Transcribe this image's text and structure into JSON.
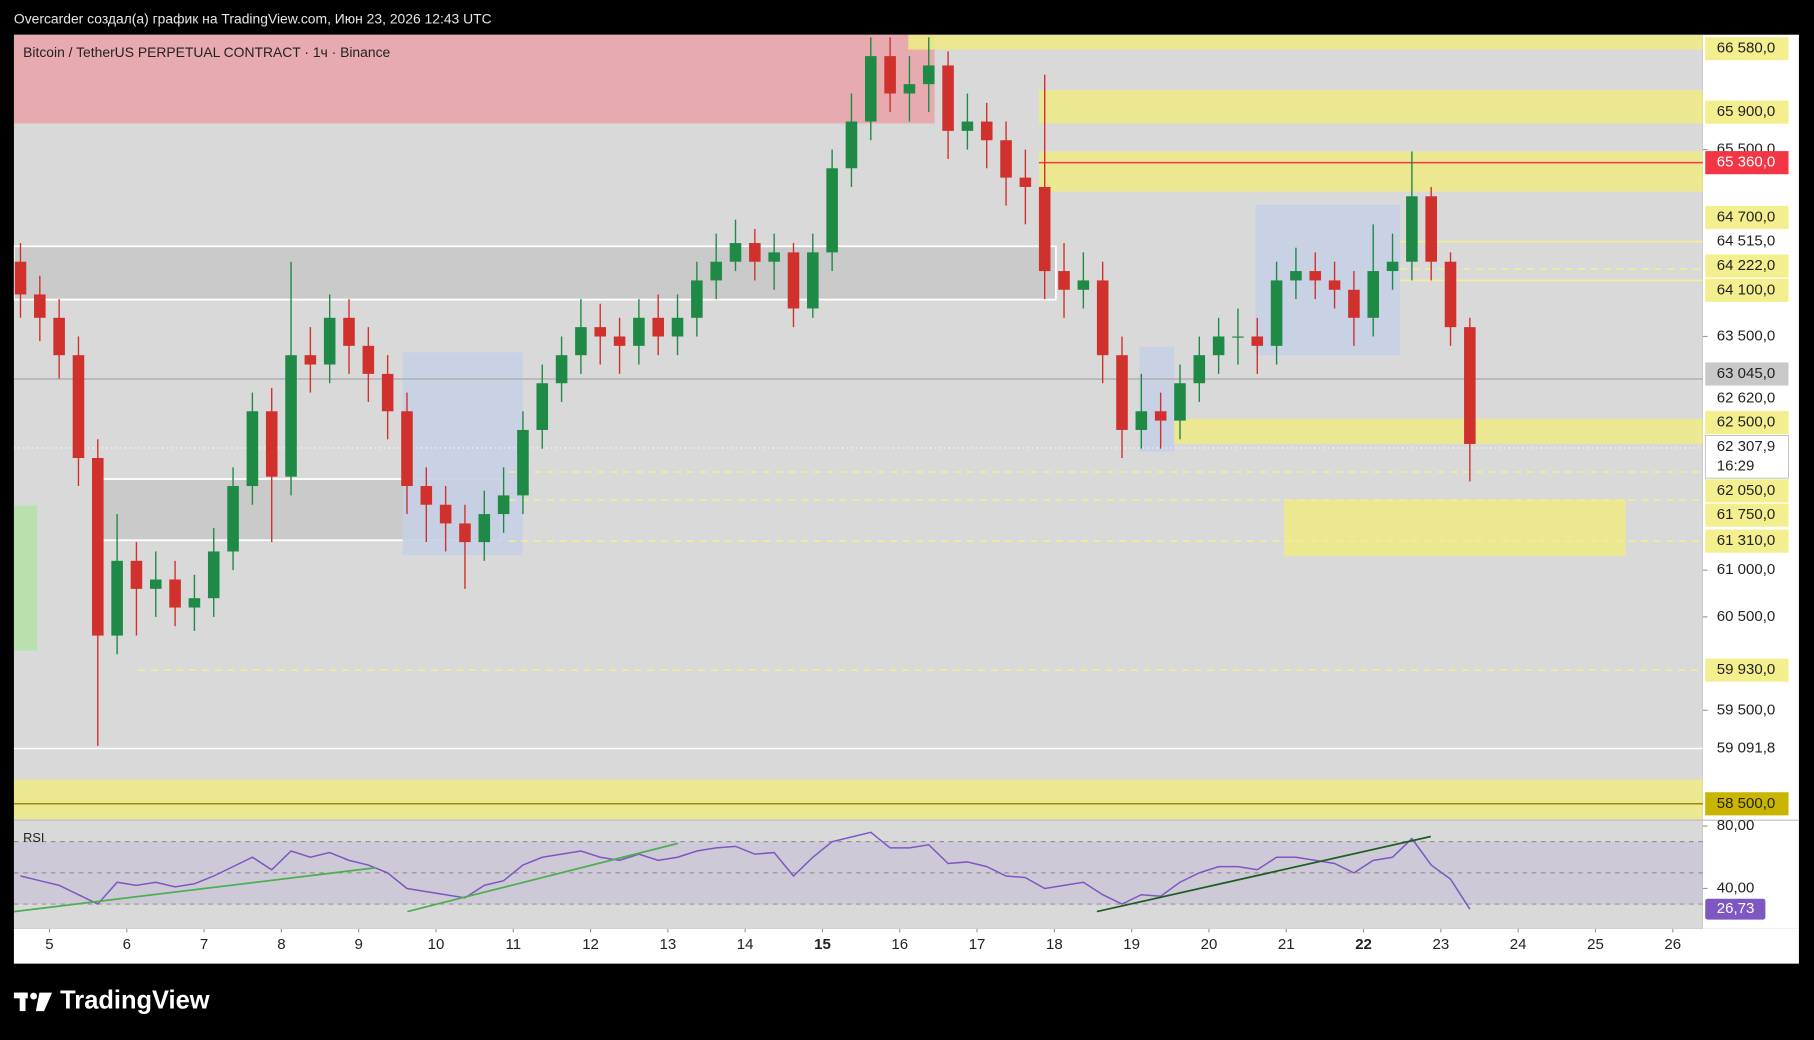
{
  "header": "Overcarder создал(а) график на TradingView.com, Июн 23, 2026 12:43 UTC",
  "footer": {
    "logo": "TradingView"
  },
  "chart_data": {
    "type": "candlestick",
    "title": "Bitcoin / TetherUS PERPETUAL CONTRACT · 1ч · Binance",
    "x": [
      4.625,
      4.875,
      5.125,
      5.375,
      5.625,
      5.875,
      6.125,
      6.375,
      6.625,
      6.875,
      7.125,
      7.375,
      7.625,
      7.875,
      8.125,
      8.375,
      8.625,
      8.875,
      9.125,
      9.375,
      9.625,
      9.875,
      10.125,
      10.375,
      10.625,
      10.875,
      11.125,
      11.375,
      11.625,
      11.875,
      12.125,
      12.375,
      12.625,
      12.875,
      13.125,
      13.375,
      13.625,
      13.875,
      14.125,
      14.375,
      14.625,
      14.875,
      15.125,
      15.375,
      15.625,
      15.875,
      16.125,
      16.375,
      16.625,
      16.875,
      17.125,
      17.375,
      17.625,
      17.875,
      18.125,
      18.375,
      18.625,
      18.875,
      19.125,
      19.375,
      19.625,
      19.875,
      20.125,
      20.375,
      20.625,
      20.875,
      21.125,
      21.375,
      21.625,
      21.875,
      22.125,
      22.375,
      22.625,
      22.875,
      23.125,
      23.375
    ],
    "open": [
      64300,
      63950,
      63700,
      63300,
      62200,
      60300,
      61100,
      60800,
      60900,
      60600,
      60700,
      61200,
      61900,
      62700,
      62000,
      63300,
      63200,
      63700,
      63400,
      63100,
      62700,
      61900,
      61700,
      61500,
      61300,
      61600,
      61800,
      62500,
      63000,
      63300,
      63600,
      63500,
      63400,
      63700,
      63500,
      63700,
      64100,
      64300,
      64500,
      64300,
      64400,
      63800,
      64400,
      65300,
      65800,
      66500,
      66100,
      66200,
      66400,
      65700,
      65800,
      65600,
      65200,
      65100,
      64200,
      64000,
      64100,
      63300,
      62500,
      62700,
      62600,
      63000,
      63300,
      63500,
      63500,
      63400,
      64100,
      64200,
      64100,
      64000,
      63700,
      64200,
      64300,
      65000,
      64300,
      63600
    ],
    "high": [
      64500,
      64150,
      63900,
      63500,
      62400,
      61600,
      61300,
      61200,
      61100,
      60950,
      61450,
      62100,
      62900,
      62950,
      64300,
      63600,
      63950,
      63900,
      63600,
      63300,
      62900,
      62100,
      61900,
      61700,
      61850,
      62100,
      62700,
      63200,
      63500,
      63900,
      63850,
      63700,
      63900,
      63950,
      63950,
      64300,
      64600,
      64750,
      64650,
      64600,
      64500,
      64600,
      65500,
      66100,
      66700,
      66700,
      66500,
      66700,
      66550,
      66100,
      66000,
      65800,
      65500,
      66300,
      64500,
      64400,
      64300,
      63500,
      63100,
      62900,
      63200,
      63500,
      63700,
      63800,
      63700,
      64300,
      64450,
      64400,
      64300,
      64200,
      64700,
      64600,
      65480,
      65100,
      64400,
      63700
    ],
    "low": [
      63700,
      63450,
      63050,
      61900,
      59120,
      60100,
      60300,
      60500,
      60400,
      60350,
      60500,
      61000,
      61700,
      61300,
      61800,
      62900,
      63000,
      63100,
      62800,
      62400,
      61600,
      61300,
      61200,
      60800,
      61100,
      61400,
      61600,
      62300,
      62800,
      63100,
      63200,
      63100,
      63200,
      63300,
      63300,
      63500,
      63900,
      64200,
      64100,
      64000,
      63600,
      63700,
      64200,
      65100,
      65600,
      65900,
      65800,
      65900,
      65400,
      65500,
      65300,
      64900,
      64700,
      63900,
      63700,
      63800,
      63000,
      62200,
      62300,
      62300,
      62400,
      62800,
      63100,
      63200,
      63100,
      63200,
      63900,
      63900,
      63800,
      63400,
      63500,
      64000,
      64100,
      64100,
      63400,
      61950
    ],
    "close": [
      63950,
      63700,
      63300,
      62200,
      60300,
      61100,
      60800,
      60900,
      60600,
      60700,
      61200,
      61900,
      62700,
      62000,
      63300,
      63200,
      63700,
      63400,
      63100,
      62700,
      61900,
      61700,
      61500,
      61300,
      61600,
      61800,
      62500,
      63000,
      63300,
      63600,
      63500,
      63400,
      63700,
      63500,
      63700,
      64100,
      64300,
      64500,
      64300,
      64400,
      63800,
      64400,
      65300,
      65800,
      66500,
      66100,
      66200,
      66400,
      65700,
      65800,
      65600,
      65200,
      65100,
      64200,
      64000,
      64100,
      63300,
      62500,
      62700,
      62600,
      63000,
      63300,
      63500,
      63500,
      63400,
      64100,
      64200,
      64100,
      64000,
      63700,
      64200,
      64300,
      65000,
      64300,
      63600,
      62350
    ],
    "up_color": "#1e8a46",
    "down_color": "#d0312d",
    "xlim": [
      4.54,
      26.39
    ],
    "xticks": [
      5,
      6,
      7,
      8,
      9,
      10,
      11,
      12,
      13,
      14,
      15,
      16,
      17,
      18,
      19,
      20,
      21,
      22,
      23,
      24,
      25,
      26
    ],
    "bold_xticks": [
      15,
      22
    ],
    "ylim": [
      58337,
      66729
    ],
    "yticks": [
      {
        "value": 65500,
        "label": "65 500,0"
      },
      {
        "value": 63500,
        "label": "63 500,0"
      },
      {
        "value": 61000,
        "label": "61 000,0"
      },
      {
        "value": 60500,
        "label": "60 500,0"
      },
      {
        "value": 59500,
        "label": "59 500,0"
      }
    ],
    "current_price": {
      "value": 62307.9,
      "label": "62 307,9",
      "countdown": "16:29"
    },
    "levels": [
      {
        "value": 66580,
        "label": "66 580,0",
        "bg": "#f3ef8f",
        "fg": "#222"
      },
      {
        "value": 65900,
        "label": "65 900,0",
        "bg": "#f3ef8f",
        "fg": "#222"
      },
      {
        "value": 65360,
        "label": "65 360,0",
        "bg": "#f23645",
        "fg": "#ffffff",
        "line": "solid",
        "line_color": "#f23645",
        "from": 17.8
      },
      {
        "value": 64700,
        "label": "64 700,0",
        "bg": "#f3ef8f",
        "fg": "#222"
      },
      {
        "value": 64515,
        "label": "64 515,0",
        "bg": "#ffffff",
        "fg": "#222",
        "line": "solid",
        "line_color": "#f3ef8f",
        "from": 22.47
      },
      {
        "value": 64222,
        "label": "64 222,0",
        "bg": "#f3ef8f",
        "fg": "#222",
        "line": "dashed",
        "line_color": "#f3ef8f",
        "from": 22.47
      },
      {
        "value": 64100,
        "label": "64 100,0",
        "bg": "#f3ef8f",
        "fg": "#222",
        "line": "solid",
        "line_color": "#f3ef8f",
        "from": 22.47
      },
      {
        "value": 63045,
        "label": "63 045,0",
        "bg": "#c8c8c8",
        "fg": "#222",
        "line": "solid",
        "line_color": "#b0b0b0",
        "from": 4.54
      },
      {
        "value": 62620,
        "label": "62 620,0",
        "bg": "#ffffff",
        "fg": "#222"
      },
      {
        "value": 62500,
        "label": "62 500,0",
        "bg": "#f3ef8f",
        "fg": "#222"
      },
      {
        "value": 62050,
        "label": "62 050,0",
        "bg": "#f3ef8f",
        "fg": "#222",
        "line": "dashed",
        "line_color": "#f3ef8f",
        "from": 10.94
      },
      {
        "value": 61750,
        "label": "61 750,0",
        "bg": "#f3ef8f",
        "fg": "#222",
        "line": "dashed",
        "line_color": "#f3ef8f",
        "from": 10.94
      },
      {
        "value": 61310,
        "label": "61 310,0",
        "bg": "#f3ef8f",
        "fg": "#222",
        "line": "dashed",
        "line_color": "#f3ef8f",
        "from": 10.94
      },
      {
        "value": 59930,
        "label": "59 930,0",
        "bg": "#f3ef8f",
        "fg": "#222",
        "line": "dashed",
        "line_color": "#f3ef8f",
        "from": 6.15
      },
      {
        "value": 59091.8,
        "label": "59 091,8",
        "bg": "#ffffff",
        "fg": "#222",
        "line": "solid",
        "line_color": "#ffffff",
        "from": 4.54
      },
      {
        "value": 58500,
        "label": "58 500,0",
        "bg": "#c9b400",
        "fg": "#222",
        "line": "solid",
        "line_color": "#9c8c00",
        "from": 4.54
      }
    ],
    "zones": [
      {
        "x": [
          4.54,
          16.45
        ],
        "y": [
          66729,
          65780
        ],
        "color": "#e8a4a8"
      },
      {
        "x": [
          16.11,
          26.39
        ],
        "y": [
          66729,
          66570
        ],
        "color": "#ede98a"
      },
      {
        "x": [
          17.8,
          26.39
        ],
        "y": [
          66135,
          65780
        ],
        "color": "#ede98a"
      },
      {
        "x": [
          17.8,
          26.39
        ],
        "y": [
          65480,
          65050
        ],
        "color": "#ede98a"
      },
      {
        "x": [
          4.54,
          18.02
        ],
        "y": [
          64465,
          63895
        ],
        "color": "#c8c8c8",
        "border": "#ffffff"
      },
      {
        "x": [
          5.64,
          10.84
        ],
        "y": [
          61975,
          61320
        ],
        "color": "#c8c8c8",
        "border": "#ffffff"
      },
      {
        "x": [
          9.57,
          11.12
        ],
        "y": [
          63330,
          61160
        ],
        "color": "#c7cfe4"
      },
      {
        "x": [
          20.6,
          22.47
        ],
        "y": [
          64910,
          63300
        ],
        "color": "#c7cfe4"
      },
      {
        "x": [
          19.1,
          19.55
        ],
        "y": [
          63390,
          62270
        ],
        "color": "#c7cfe4"
      },
      {
        "x": [
          19.55,
          26.39
        ],
        "y": [
          62620,
          62350
        ],
        "color": "#ede98a"
      },
      {
        "x": [
          20.97,
          25.39
        ],
        "y": [
          61755,
          61150
        ],
        "color": "#ede98a"
      },
      {
        "x": [
          4.54,
          26.39
        ],
        "y": [
          58760,
          58337
        ],
        "color": "#ede98a"
      },
      {
        "x": [
          4.54,
          4.84
        ],
        "y": [
          61690,
          60140
        ],
        "color": "#b6e0a8"
      }
    ],
    "rsi": {
      "name": "RSI",
      "color": "#7e57c2",
      "ylim": [
        16.3,
        83
      ],
      "yticks": [
        {
          "value": 80,
          "label": "80,00"
        },
        {
          "value": 40,
          "label": "40,00"
        }
      ],
      "bands": [
        70,
        50,
        30
      ],
      "values": [
        48,
        45,
        42,
        36,
        30,
        44,
        42,
        44,
        41,
        43,
        48,
        54,
        60,
        52,
        64,
        60,
        63,
        58,
        55,
        50,
        40,
        38,
        36,
        34,
        42,
        45,
        55,
        60,
        62,
        64,
        60,
        58,
        62,
        58,
        60,
        64,
        66,
        67,
        62,
        63,
        48,
        60,
        70,
        73,
        76,
        66,
        66,
        68,
        56,
        57,
        54,
        48,
        47,
        40,
        42,
        44,
        36,
        30,
        36,
        35,
        44,
        50,
        54,
        54,
        52,
        60,
        60,
        58,
        56,
        50,
        58,
        60,
        72,
        55,
        46,
        26.73
      ],
      "last": {
        "value": 26.73,
        "label": "26,73"
      },
      "trendlines": [
        {
          "x": [
            4.54,
            9.22
          ],
          "y": [
            25.2,
            53.3
          ],
          "color": "#4caf50"
        },
        {
          "x": [
            9.63,
            13.13
          ],
          "y": [
            25.2,
            68.9
          ],
          "color": "#4caf50"
        },
        {
          "x": [
            18.55,
            22.87
          ],
          "y": [
            25.2,
            73.3
          ],
          "color": "#1b5e20"
        }
      ]
    }
  }
}
